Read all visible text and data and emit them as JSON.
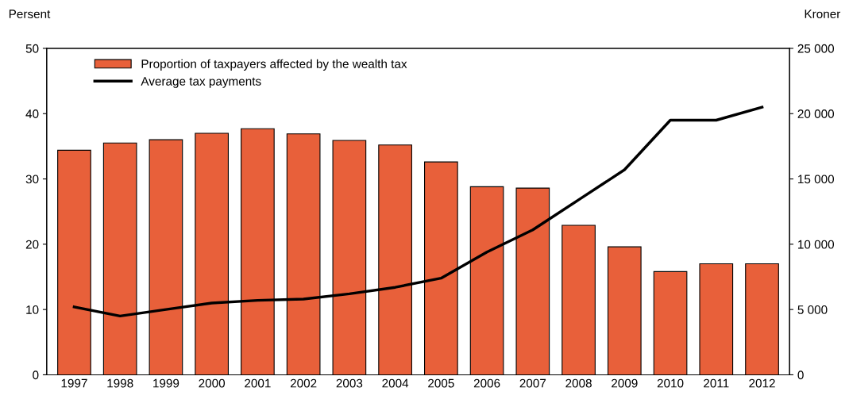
{
  "chart_data": {
    "type": "bar",
    "categories": [
      "1997",
      "1998",
      "1999",
      "2000",
      "2001",
      "2002",
      "2003",
      "2004",
      "2005",
      "2006",
      "2007",
      "2008",
      "2009",
      "2010",
      "2011",
      "2012"
    ],
    "series": [
      {
        "name": "Proportion of taxpayers affected by the wealth tax",
        "color": "#e8603a",
        "values": [
          34.4,
          35.5,
          36.0,
          37.0,
          37.7,
          36.9,
          35.9,
          35.2,
          32.6,
          28.8,
          28.6,
          22.9,
          19.6,
          15.8,
          17.0,
          17.0
        ]
      },
      {
        "name": "Average tax payments",
        "type": "line",
        "axis": "y2",
        "color": "#000000",
        "values": [
          5200,
          4500,
          5000,
          5500,
          5700,
          5800,
          6200,
          6700,
          7400,
          9400,
          11100,
          13400,
          15700,
          19500,
          19500,
          20500
        ]
      }
    ],
    "ylabel": "Persent",
    "y2label": "Kroner",
    "ylim": [
      0,
      50
    ],
    "yticks": [
      0,
      10,
      20,
      30,
      40,
      50
    ],
    "y2lim": [
      0,
      25000
    ],
    "y2ticks": [
      {
        "value": 0,
        "label": "0"
      },
      {
        "value": 5000,
        "label": "5 000"
      },
      {
        "value": 10000,
        "label": "10 000"
      },
      {
        "value": 15000,
        "label": "15 000"
      },
      {
        "value": 20000,
        "label": "20 000"
      },
      {
        "value": 25000,
        "label": "25 000"
      }
    ],
    "legend": "top left",
    "grid": false,
    "marker": "none",
    "line_style": "solid"
  }
}
